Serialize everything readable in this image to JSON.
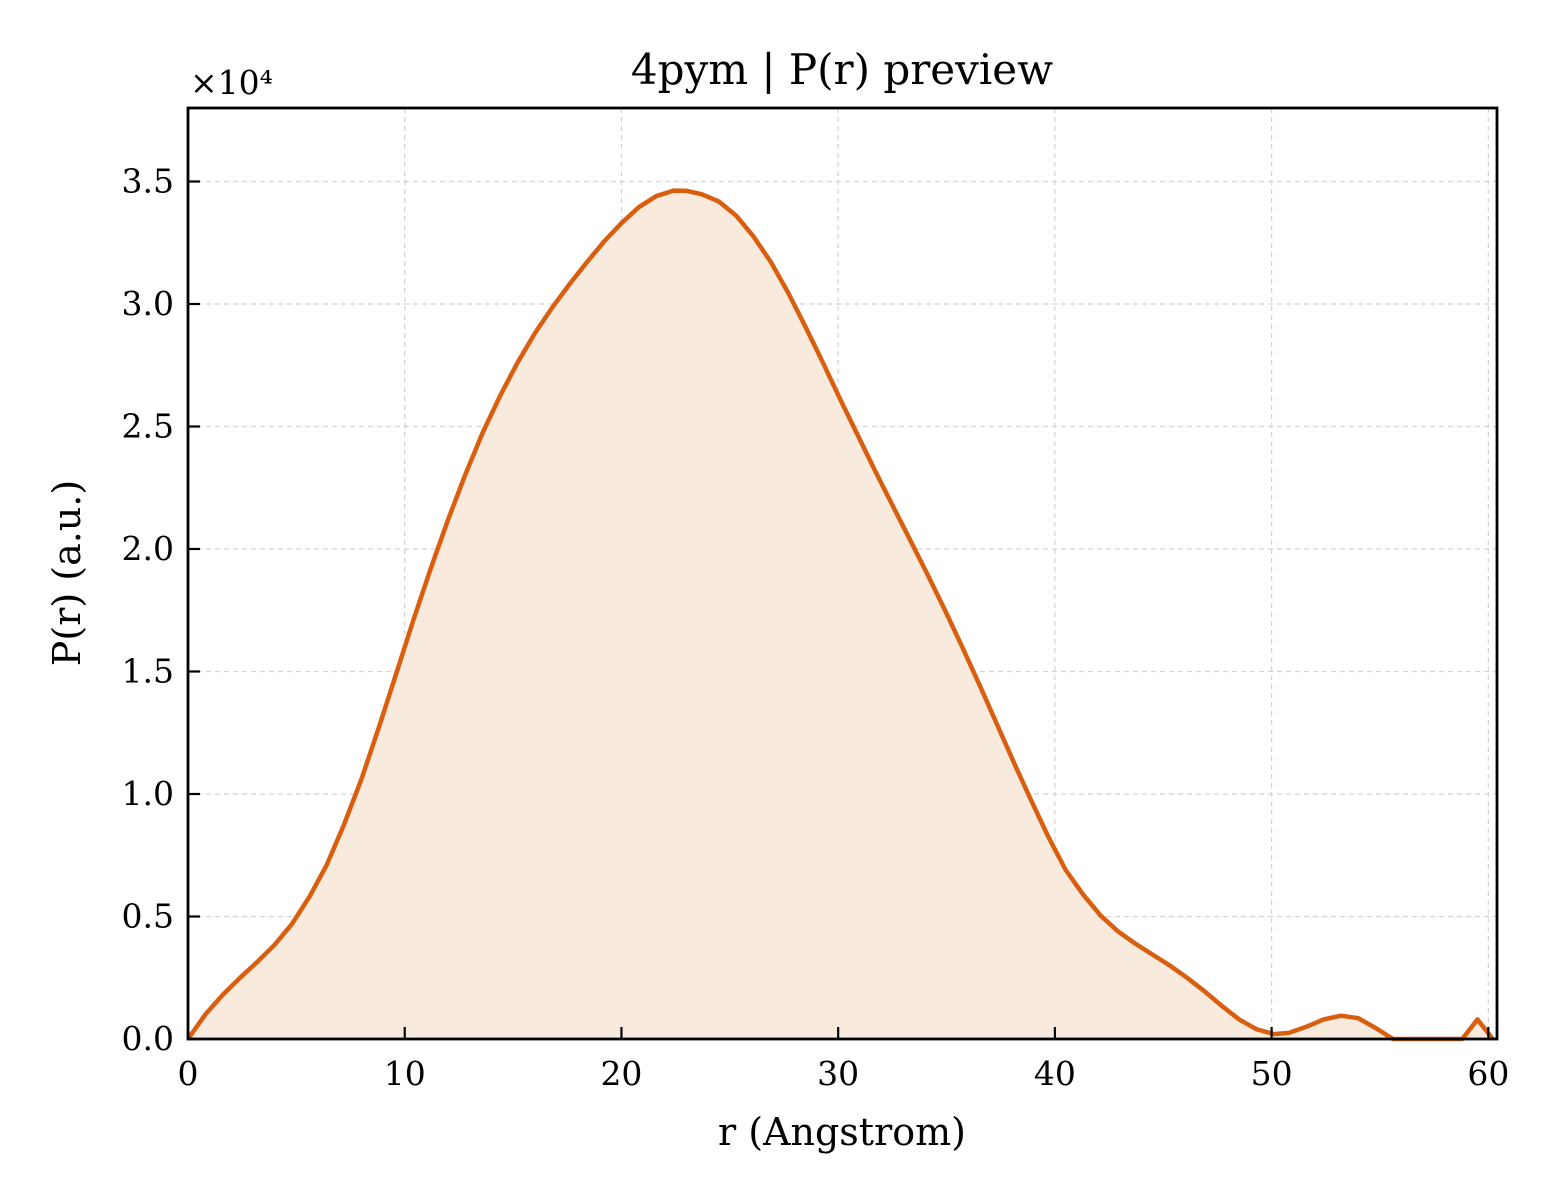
{
  "chart_data": {
    "type": "area",
    "title": "4pym | P(r) preview",
    "xlabel": "r (Angstrom)",
    "ylabel": "P(r) (a.u.)",
    "y_offset_label": "×10⁴",
    "y_scale_factor": 10000,
    "xlim": [
      0,
      60.4
    ],
    "ylim": [
      0,
      38000
    ],
    "x_ticks": [
      0,
      10,
      20,
      30,
      40,
      50,
      60
    ],
    "x_tick_labels": [
      "0",
      "10",
      "20",
      "30",
      "40",
      "50",
      "60"
    ],
    "y_ticks": [
      0,
      5000,
      10000,
      15000,
      20000,
      25000,
      30000,
      35000
    ],
    "y_tick_labels": [
      "0.0",
      "0.5",
      "1.0",
      "1.5",
      "2.0",
      "2.5",
      "3.0",
      "3.5"
    ],
    "grid": true,
    "line_color": "#d95f0e",
    "fill_color": "#f9eade",
    "series": [
      {
        "x": [
          0,
          0.8,
          1.6,
          2.4,
          3.2,
          4.0,
          4.8,
          5.6,
          6.4,
          7.2,
          8.0,
          8.8,
          9.6,
          10.4,
          11.2,
          12.0,
          12.8,
          13.6,
          14.4,
          15.2,
          16.0,
          16.8,
          17.6,
          18.4,
          19.2,
          20.0,
          20.8,
          21.6,
          22.4,
          23.0,
          23.7,
          24.5,
          25.3,
          26.1,
          26.9,
          27.7,
          28.5,
          29.3,
          30.1,
          30.9,
          31.7,
          32.5,
          33.3,
          34.1,
          34.9,
          35.7,
          36.5,
          37.3,
          38.1,
          38.9,
          39.7,
          40.5,
          41.3,
          42.1,
          42.9,
          43.7,
          44.5,
          45.3,
          46.1,
          46.9,
          47.7,
          48.5,
          49.3,
          50.1,
          50.8,
          51.6,
          52.4,
          53.2,
          54.0,
          54.8,
          55.6,
          56.4,
          57.2,
          58.0,
          58.8,
          59.5,
          60.2
        ],
        "y": [
          0,
          1000,
          1800,
          2500,
          3150,
          3850,
          4700,
          5800,
          7100,
          8750,
          10600,
          12700,
          14900,
          17100,
          19200,
          21200,
          23050,
          24750,
          26250,
          27600,
          28800,
          29850,
          30800,
          31700,
          32550,
          33300,
          33950,
          34400,
          34630,
          34620,
          34480,
          34180,
          33600,
          32750,
          31700,
          30450,
          29050,
          27600,
          26100,
          24650,
          23200,
          21800,
          20400,
          19000,
          17550,
          16050,
          14500,
          12900,
          11300,
          9750,
          8250,
          6900,
          5900,
          5050,
          4400,
          3900,
          3450,
          3000,
          2500,
          1950,
          1350,
          800,
          400,
          200,
          250,
          500,
          800,
          950,
          850,
          450,
          0,
          0,
          0,
          0,
          0,
          800,
          0
        ]
      }
    ]
  }
}
